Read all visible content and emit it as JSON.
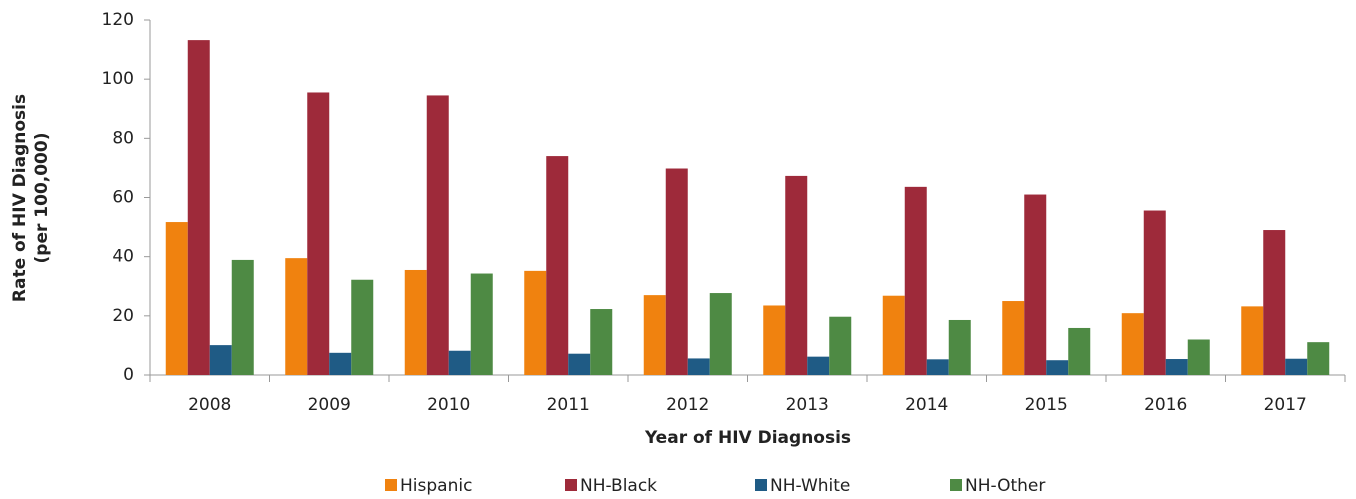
{
  "chart_data": {
    "type": "bar",
    "xlabel": "Year of HIV Diagnosis",
    "ylabel": [
      "Rate of HIV Diagnosis",
      "(per 100,000)"
    ],
    "categories": [
      "2008",
      "2009",
      "2010",
      "2011",
      "2012",
      "2013",
      "2014",
      "2015",
      "2016",
      "2017"
    ],
    "series": [
      {
        "name": "Hispanic",
        "color": "#f0820f",
        "values": [
          51.7,
          39.5,
          35.5,
          35.2,
          27,
          23.5,
          26.8,
          25,
          20.9,
          23.2
        ]
      },
      {
        "name": "NH-Black",
        "color": "#9e2a3a",
        "values": [
          113.2,
          95.5,
          94.5,
          74,
          69.8,
          67.3,
          63.6,
          61,
          55.6,
          49
        ]
      },
      {
        "name": "NH-White",
        "color": "#1f5b85",
        "values": [
          10.1,
          7.5,
          8.2,
          7.2,
          5.6,
          6.2,
          5.3,
          5,
          5.4,
          5.5
        ]
      },
      {
        "name": "NH-Other",
        "color": "#4e8a44",
        "values": [
          38.9,
          32.2,
          34.3,
          22.3,
          27.7,
          19.7,
          18.6,
          15.9,
          12,
          11.1
        ]
      }
    ],
    "ylim": [
      0,
      120
    ],
    "yticks": [
      0,
      20,
      40,
      60,
      80,
      100,
      120
    ],
    "grid": false,
    "legend": "bottom"
  }
}
